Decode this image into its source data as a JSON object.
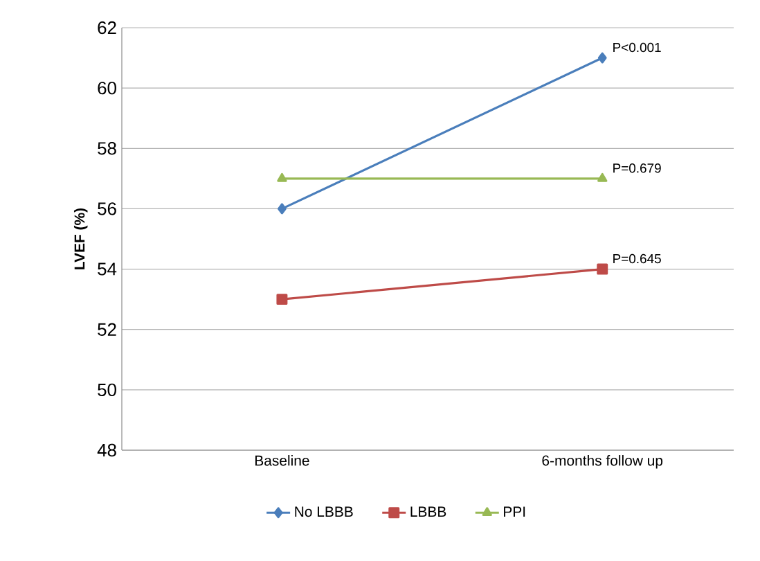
{
  "chart_data": {
    "type": "line",
    "ylabel": "LVEF (%)",
    "categories": [
      "Baseline",
      "6-months follow up"
    ],
    "series": [
      {
        "name": "No LBBB",
        "color": "#4a7ebb",
        "values": [
          56,
          61
        ],
        "marker": "diamond"
      },
      {
        "name": "LBBB",
        "color": "#be4b48",
        "values": [
          53,
          54
        ],
        "marker": "square"
      },
      {
        "name": "PPI",
        "color": "#98b954",
        "values": [
          57,
          57
        ],
        "marker": "triangle"
      }
    ],
    "ylim": [
      48,
      62
    ],
    "yticks": [
      48,
      50,
      52,
      54,
      56,
      58,
      60,
      62
    ],
    "grid": "y",
    "legend": "bottom",
    "annotations": [
      {
        "text": "P<0.001",
        "x": "6-months follow up",
        "y": 61
      },
      {
        "text": "P=0.679",
        "x": "6-months follow up",
        "y": 57
      },
      {
        "text": "P=0.645",
        "x": "6-months follow up",
        "y": 54
      }
    ]
  }
}
